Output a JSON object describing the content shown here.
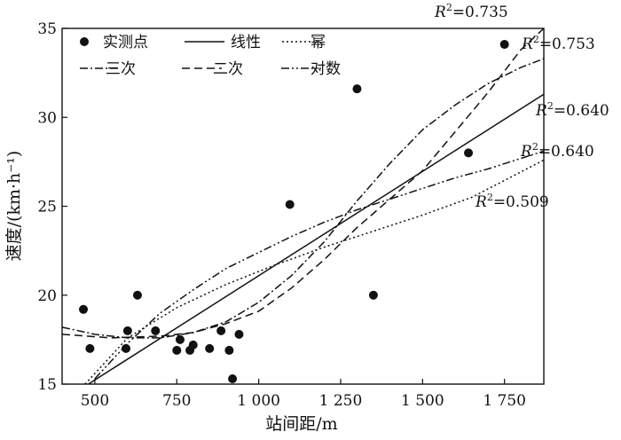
{
  "chart_data": {
    "type": "scatter",
    "xlabel": "站间距/m",
    "ylabel": "速度/(km·h⁻¹)",
    "xlim": [
      400,
      1870
    ],
    "ylim": [
      15,
      35
    ],
    "xticks": [
      {
        "value": 500,
        "label": "500"
      },
      {
        "value": 750,
        "label": "750"
      },
      {
        "value": 1000,
        "label": "1 000"
      },
      {
        "value": 1250,
        "label": "1 250"
      },
      {
        "value": 1500,
        "label": "1 500"
      },
      {
        "value": 1750,
        "label": "1 750"
      }
    ],
    "yticks": [
      {
        "value": 15,
        "label": "15"
      },
      {
        "value": 20,
        "label": "20"
      },
      {
        "value": 25,
        "label": "25"
      },
      {
        "value": 30,
        "label": "30"
      },
      {
        "value": 35,
        "label": "35"
      }
    ],
    "grid": false,
    "legend_position": "top-left",
    "points": {
      "name": "实测点",
      "x": [
        465,
        485,
        595,
        600,
        630,
        685,
        750,
        760,
        790,
        800,
        850,
        885,
        910,
        920,
        940,
        1095,
        1300,
        1350,
        1640,
        1750
      ],
      "y": [
        19.2,
        17.0,
        17.0,
        18.0,
        20.0,
        18.0,
        16.9,
        17.5,
        16.9,
        17.2,
        17.0,
        18.0,
        16.9,
        15.3,
        17.8,
        25.1,
        31.6,
        20.0,
        28.0,
        34.1
      ]
    },
    "fits": [
      {
        "name": "线性",
        "style": "solid",
        "r2": "0.640",
        "x": [
          480,
          1870
        ],
        "y": [
          15.0,
          31.3
        ]
      },
      {
        "name": "幂",
        "style": "dotted",
        "r2": "0.509",
        "x": [
          470,
          600,
          750,
          900,
          1050,
          1200,
          1350,
          1500,
          1650,
          1870
        ],
        "y": [
          15.0,
          17.6,
          19.3,
          20.6,
          21.7,
          22.7,
          23.6,
          24.5,
          25.5,
          27.6
        ]
      },
      {
        "name": "三次",
        "style": "dashdot",
        "r2": "0.735",
        "x": [
          400,
          500,
          600,
          700,
          800,
          900,
          1000,
          1100,
          1200,
          1300,
          1400,
          1500,
          1600,
          1700,
          1800,
          1870
        ],
        "y": [
          18.2,
          17.8,
          17.6,
          17.6,
          17.9,
          18.5,
          19.6,
          21.1,
          23.0,
          25.3,
          27.4,
          29.3,
          30.7,
          31.9,
          32.8,
          33.3
        ]
      },
      {
        "name": "二次",
        "style": "dashed",
        "r2": "0.753",
        "x": [
          400,
          550,
          700,
          800,
          900,
          1000,
          1100,
          1200,
          1300,
          1400,
          1500,
          1600,
          1700,
          1800,
          1870
        ],
        "y": [
          17.8,
          17.6,
          17.7,
          17.9,
          18.4,
          19.1,
          20.4,
          22.0,
          23.8,
          25.4,
          27.0,
          29.2,
          31.4,
          33.8,
          35.0
        ]
      },
      {
        "name": "对数",
        "style": "dashdotdot",
        "r2": "0.640",
        "x": [
          500,
          600,
          700,
          800,
          900,
          1000,
          1100,
          1200,
          1300,
          1400,
          1500,
          1600,
          1700,
          1870
        ],
        "y": [
          15.3,
          17.3,
          19.0,
          20.3,
          21.5,
          22.4,
          23.3,
          24.1,
          24.8,
          25.4,
          26.0,
          26.6,
          27.1,
          28.1
        ]
      }
    ]
  }
}
